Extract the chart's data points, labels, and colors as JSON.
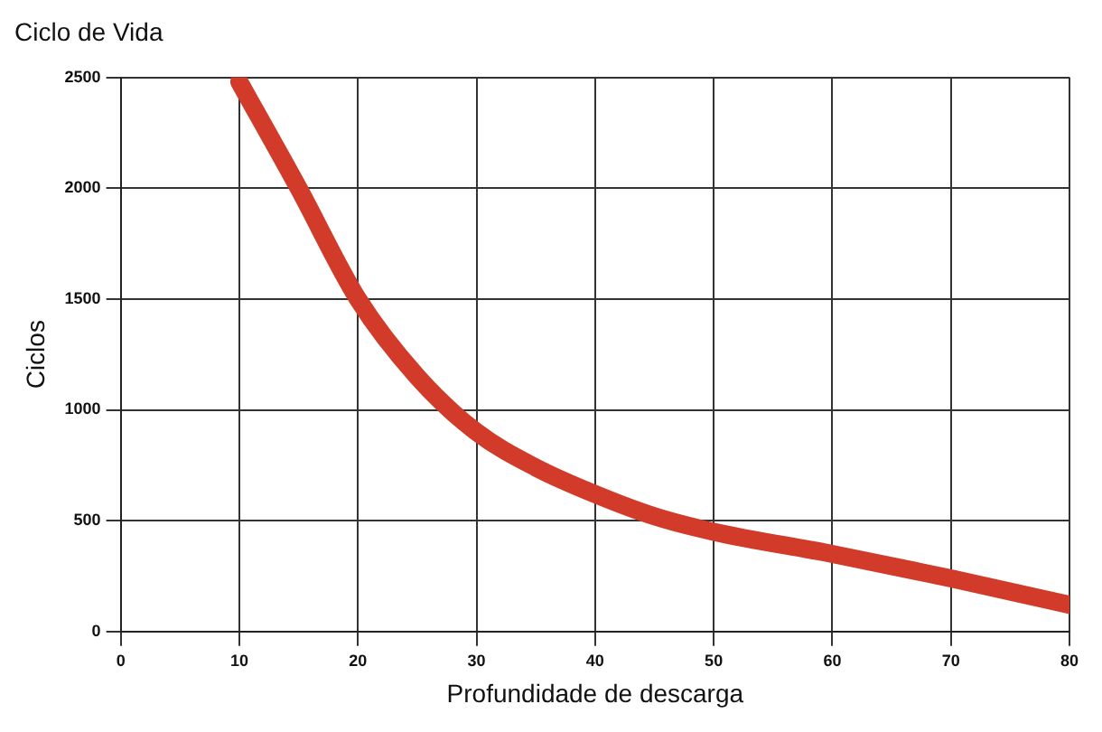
{
  "chart_data": {
    "type": "line",
    "title": "Ciclo de Vida",
    "xlabel": "Profundidade de descarga",
    "ylabel": "Ciclos",
    "x": [
      10,
      15,
      20,
      25,
      30,
      35,
      40,
      45,
      50,
      60,
      70,
      80
    ],
    "series": [
      {
        "color": "#d23a2a",
        "values": [
          2480,
          2000,
          1500,
          1150,
          900,
          740,
          620,
          520,
          450,
          350,
          240,
          120
        ]
      }
    ],
    "xlim": [
      0,
      80
    ],
    "xticks": [
      0,
      10,
      20,
      30,
      40,
      50,
      60,
      70,
      80
    ],
    "ylim": [
      0,
      2500
    ],
    "yticks": [
      0,
      500,
      1000,
      1500,
      2000,
      2500
    ],
    "grid": true,
    "legend": false,
    "marker": "none",
    "line_style": "solid"
  }
}
